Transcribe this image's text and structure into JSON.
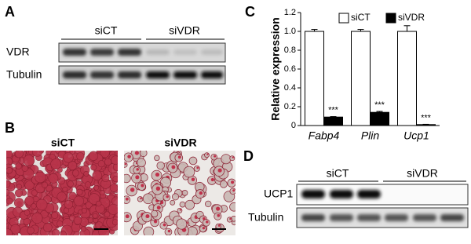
{
  "panels": {
    "a": {
      "label": "A",
      "groups": [
        "siCT",
        "siVDR"
      ],
      "rows": [
        "VDR",
        "Tubulin"
      ]
    },
    "b": {
      "label": "B",
      "groups": [
        "siCT",
        "siVDR"
      ]
    },
    "d": {
      "label": "D",
      "groups": [
        "siCT",
        "siVDR"
      ],
      "rows": [
        "UCP1",
        "Tubulin"
      ]
    }
  },
  "chart_data": {
    "type": "bar",
    "label": "C",
    "ylabel": "Relative expression",
    "categories": [
      "Fabp4",
      "Plin",
      "Ucp1"
    ],
    "series": [
      {
        "name": "siCT",
        "color": "#ffffff",
        "values": [
          1.0,
          1.0,
          1.0
        ],
        "errors": [
          0.02,
          0.02,
          0.06
        ]
      },
      {
        "name": "siVDR",
        "color": "#000000",
        "values": [
          0.09,
          0.14,
          0.01
        ],
        "errors": [
          0.005,
          0.01,
          0.003
        ]
      }
    ],
    "annotations": [
      "***",
      "***",
      "***"
    ],
    "ylim": [
      0,
      1.2
    ],
    "yticks": [
      0,
      0.2,
      0.4,
      0.6,
      0.8,
      {
        "value": 1,
        "label": "1.0"
      },
      1.2
    ],
    "legend": "top-right"
  }
}
